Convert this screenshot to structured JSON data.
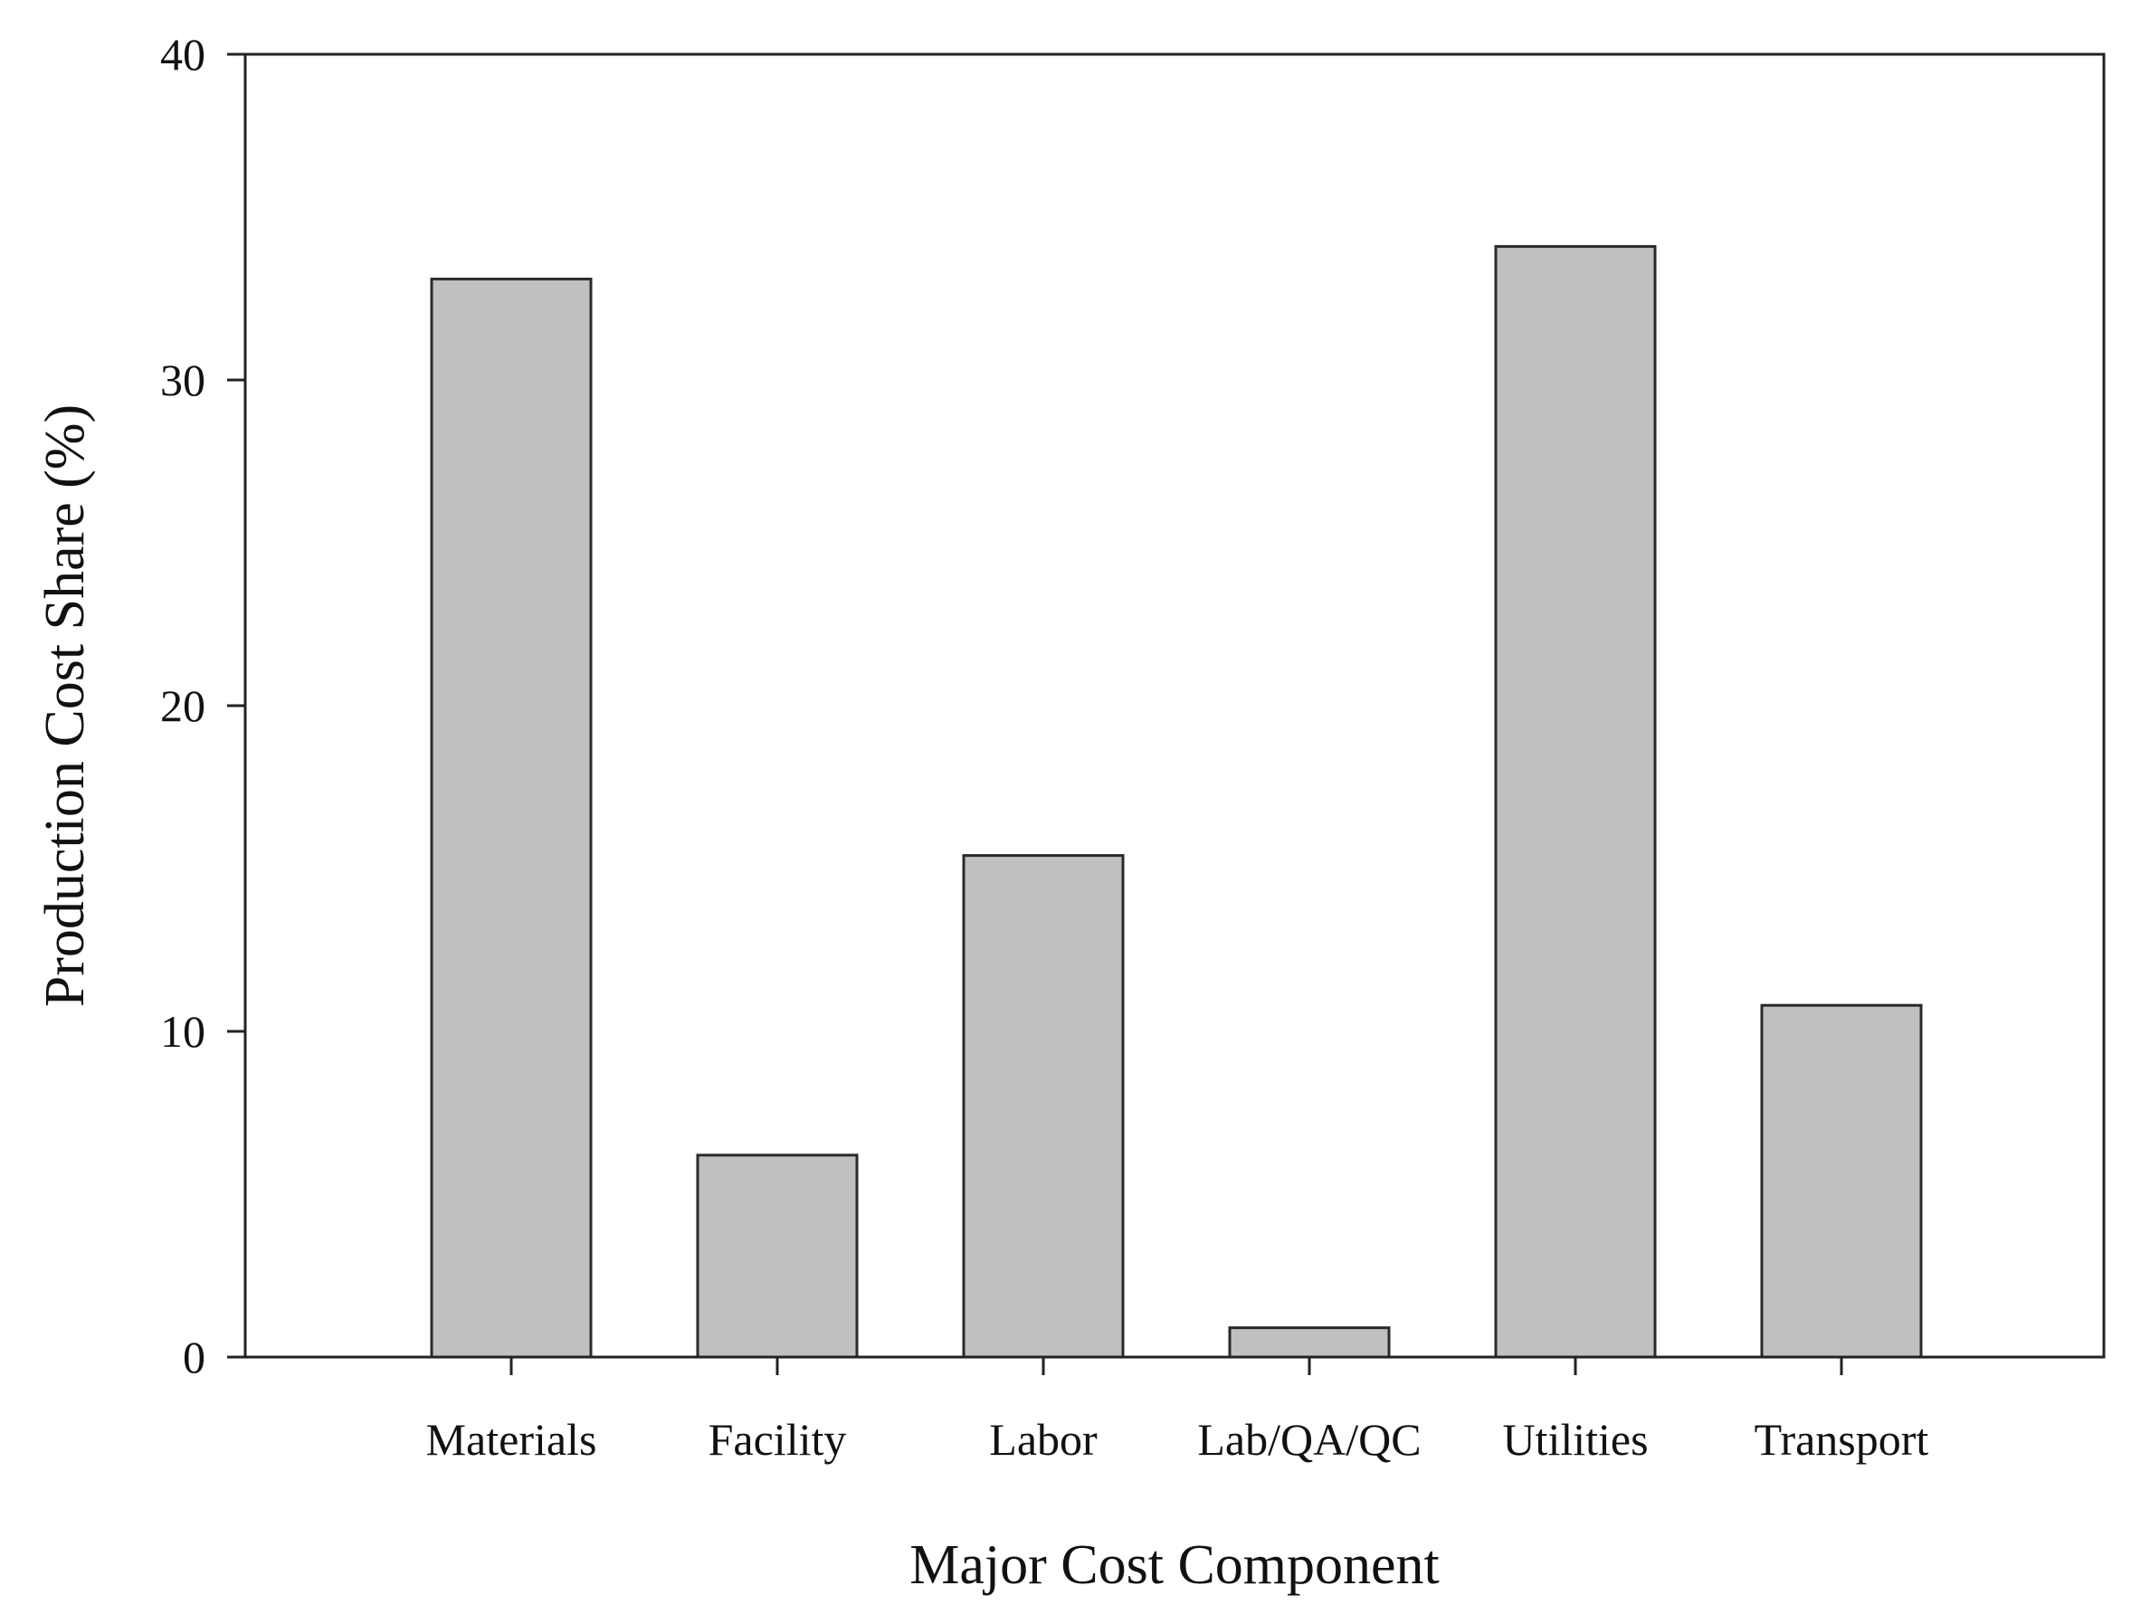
{
  "chart_data": {
    "type": "bar",
    "categories": [
      "Materials",
      "Facility",
      "Labor",
      "Lab/QA/QC",
      "Utilities",
      "Transport"
    ],
    "values": [
      33.1,
      6.2,
      15.4,
      0.9,
      34.1,
      10.8
    ],
    "xlabel": "Major Cost Component",
    "ylabel": "Production Cost Share (%)",
    "ylim": [
      0,
      40
    ],
    "yticks": [
      "0",
      "10",
      "20",
      "30",
      "40"
    ],
    "grid": false,
    "colors": {
      "bar_fill": "#c0c0c0",
      "bar_edge": "#2a2a2a"
    }
  }
}
